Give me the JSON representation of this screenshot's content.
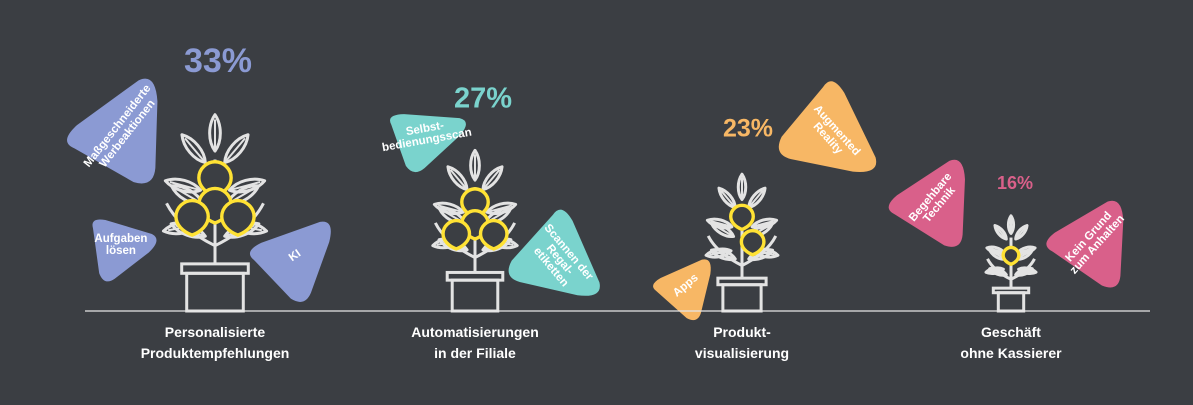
{
  "chart_data": {
    "type": "bar",
    "categories": [
      [
        "Personalisierte",
        "Produktempfehlungen"
      ],
      [
        "Automatisierungen",
        "in der Filiale"
      ],
      [
        "Produkt-",
        "visualisierung"
      ],
      [
        "Geschäft",
        "ohne Kassierer"
      ]
    ],
    "values": [
      33,
      27,
      23,
      16
    ],
    "value_labels": [
      "33%",
      "27%",
      "23%",
      "16%"
    ],
    "colors": [
      "#8b9ad3",
      "#7ad3cd",
      "#f7b765",
      "#d9608a"
    ],
    "plant_color": "#e3e3e3",
    "fruit_color": "#ffe234",
    "tags": [
      {
        "category": 0,
        "lines": [
          "Maßgeschneiderte",
          "Werbeaktionen"
        ]
      },
      {
        "category": 0,
        "lines": [
          "Aufgaben",
          "lösen"
        ]
      },
      {
        "category": 0,
        "lines": [
          "KI"
        ]
      },
      {
        "category": 1,
        "lines": [
          "Selbst-",
          "bedienungsscan"
        ]
      },
      {
        "category": 1,
        "lines": [
          "Scannen  der",
          "Regal-",
          "etiketten"
        ]
      },
      {
        "category": 2,
        "lines": [
          "Augmented",
          "Reality"
        ]
      },
      {
        "category": 2,
        "lines": [
          "Apps"
        ]
      },
      {
        "category": 3,
        "lines": [
          "Begehbare",
          "Technik"
        ]
      },
      {
        "category": 3,
        "lines": [
          "Kein Grund",
          "zum Anhalten"
        ]
      }
    ]
  }
}
